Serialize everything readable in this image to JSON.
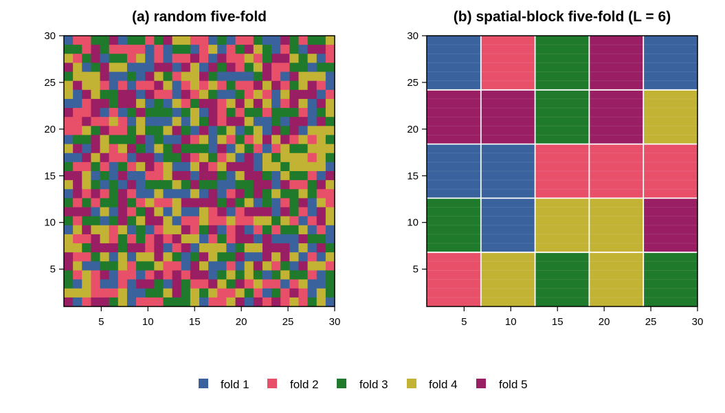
{
  "legend": {
    "placement": "bottom-center",
    "items": [
      {
        "label": "fold 1",
        "fold": 1
      },
      {
        "label": "fold 2",
        "fold": 2
      },
      {
        "label": "fold 3",
        "fold": 3
      },
      {
        "label": "fold 4",
        "fold": 4
      },
      {
        "label": "fold 5",
        "fold": 5
      }
    ]
  },
  "fold_colors": {
    "1": "#3a639d",
    "2": "#e8506a",
    "3": "#207a2c",
    "4": "#c2b335",
    "5": "#991e63"
  },
  "chart_data": [
    {
      "type": "heatmap",
      "title": "(a) random five-fold",
      "xlabel": "",
      "ylabel": "",
      "xlim": [
        1,
        30
      ],
      "ylim": [
        1,
        30
      ],
      "x_ticks": [
        "5",
        "10",
        "15",
        "20",
        "25",
        "30"
      ],
      "y_ticks": [
        "5",
        "10",
        "15",
        "20",
        "25",
        "30"
      ],
      "grid": false,
      "cell_assignment": "random",
      "n_cells": [
        30,
        30
      ],
      "fold_counts": {
        "1": 180,
        "2": 180,
        "3": 180,
        "4": 180,
        "5": 180
      }
    },
    {
      "type": "heatmap",
      "title": "(b) spatial-block five-fold (L = 6)",
      "xlabel": "",
      "ylabel": "",
      "xlim": [
        1,
        30
      ],
      "ylim": [
        1,
        30
      ],
      "x_ticks": [
        "5",
        "10",
        "15",
        "20",
        "25",
        "30"
      ],
      "y_ticks": [
        "5",
        "10",
        "15",
        "20",
        "25",
        "30"
      ],
      "grid": false,
      "block_size": 6,
      "x_blocks": [
        "1-6",
        "7-12",
        "13-18",
        "19-24",
        "25-30"
      ],
      "y_blocks": [
        "25-30",
        "19-24",
        "13-18",
        "7-12",
        "1-6"
      ],
      "blocks": [
        [
          1,
          2,
          3,
          5,
          1
        ],
        [
          5,
          5,
          3,
          5,
          4
        ],
        [
          1,
          1,
          2,
          2,
          2
        ],
        [
          3,
          1,
          4,
          4,
          5
        ],
        [
          2,
          4,
          3,
          4,
          3
        ]
      ]
    }
  ]
}
